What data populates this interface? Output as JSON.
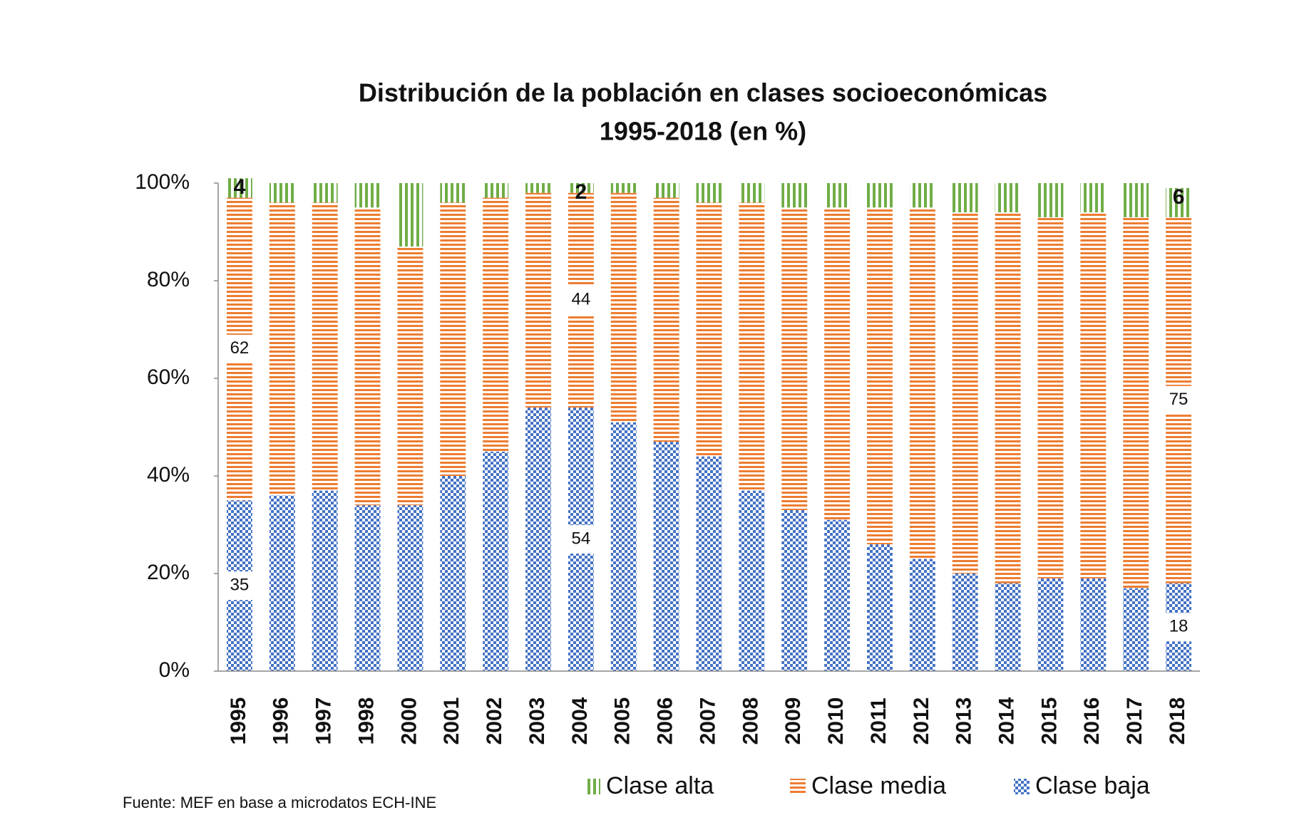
{
  "chart_data": {
    "type": "stacked_bar",
    "title": "Distribución de la población en clases socioeconómicas",
    "subtitle": "1995-2018 (en %)",
    "source": "Fuente: MEF en base a microdatos ECH-INE",
    "categories": [
      "1995",
      "1996",
      "1997",
      "1998",
      "2000",
      "2001",
      "2002",
      "2003",
      "2004",
      "2005",
      "2006",
      "2007",
      "2008",
      "2009",
      "2010",
      "2011",
      "2012",
      "2013",
      "2014",
      "2015",
      "2016",
      "2017",
      "2018"
    ],
    "series": [
      {
        "name": "Clase alta",
        "color": "#70ad47",
        "pattern": "vertical",
        "values": [
          4,
          4,
          4,
          5,
          13,
          4,
          3,
          2,
          2,
          2,
          3,
          4,
          4,
          5,
          5,
          5,
          5,
          6,
          6,
          7,
          6,
          7,
          6
        ]
      },
      {
        "name": "Clase media",
        "color": "#ed7d31",
        "pattern": "horizontal",
        "values": [
          62,
          60,
          59,
          61,
          53,
          56,
          52,
          44,
          44,
          47,
          50,
          52,
          59,
          62,
          64,
          69,
          72,
          74,
          76,
          74,
          75,
          76,
          75
        ]
      },
      {
        "name": "Clase baja",
        "color": "#4472c4",
        "pattern": "checker",
        "values": [
          35,
          36,
          37,
          34,
          34,
          40,
          45,
          54,
          54,
          51,
          47,
          44,
          37,
          33,
          31,
          26,
          23,
          20,
          18,
          19,
          19,
          17,
          18
        ]
      }
    ],
    "labeled_categories": [
      "1995",
      "2004",
      "2018"
    ],
    "ylim": [
      0,
      100
    ],
    "yticks": [
      {
        "value": 0,
        "label": "0%"
      },
      {
        "value": 20,
        "label": "20%"
      },
      {
        "value": 40,
        "label": "40%"
      },
      {
        "value": 60,
        "label": "60%"
      },
      {
        "value": 80,
        "label": "80%"
      },
      {
        "value": 100,
        "label": "100%"
      }
    ],
    "legend": "bottom"
  }
}
